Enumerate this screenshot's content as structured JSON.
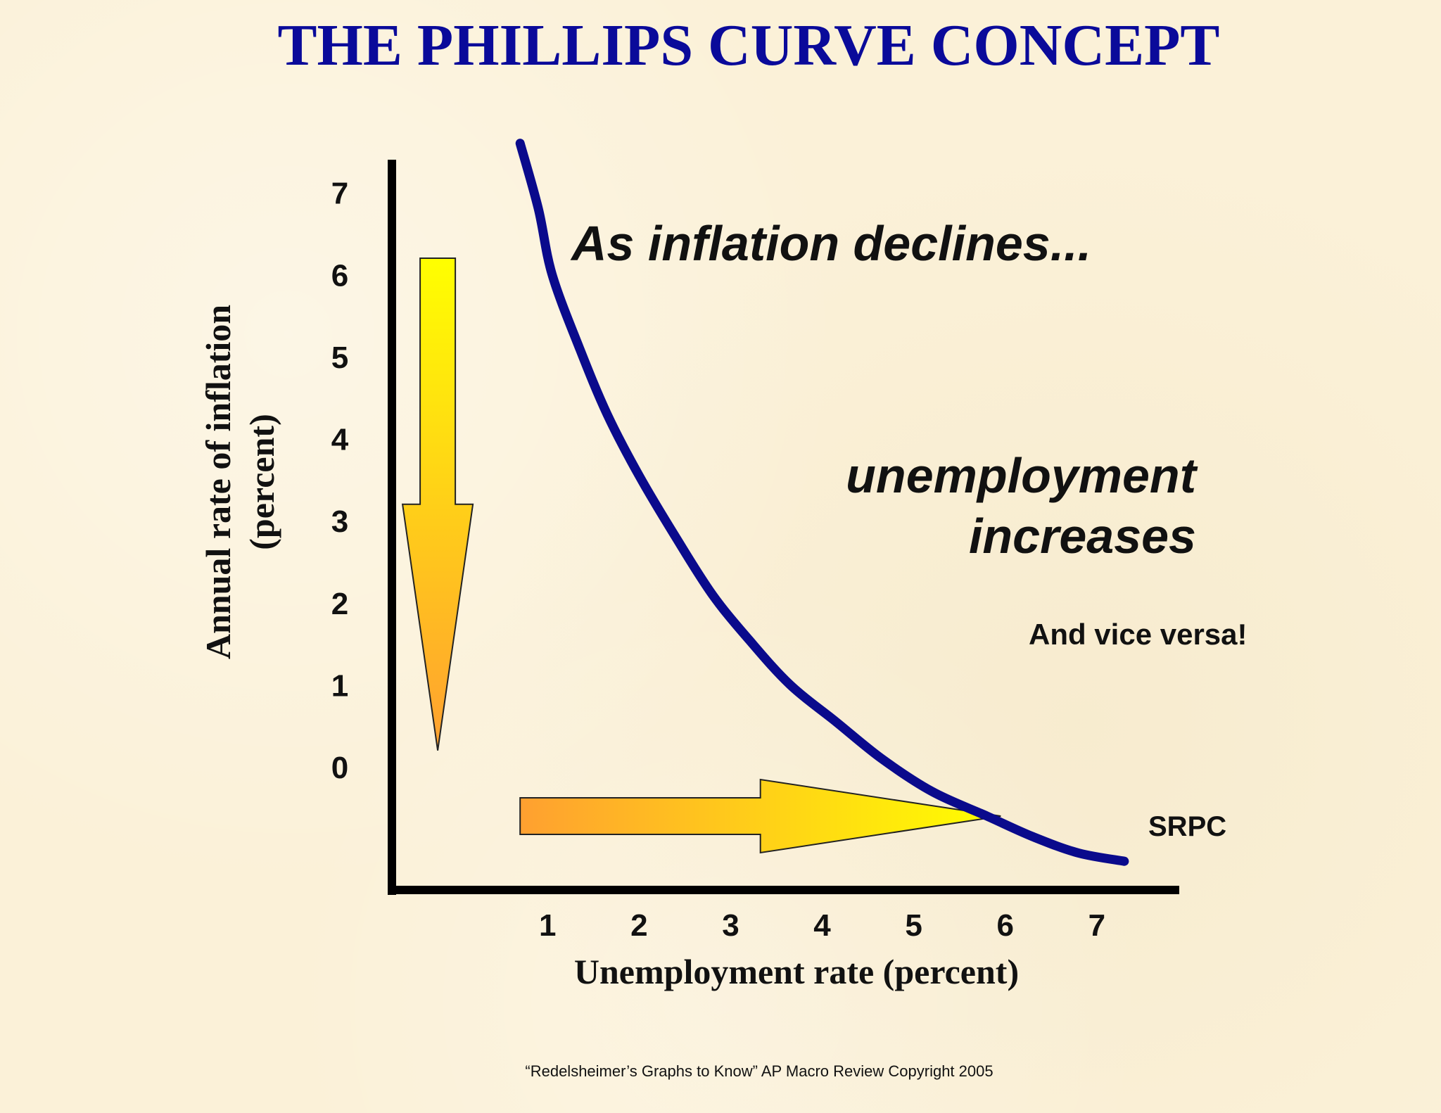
{
  "chart_data": {
    "type": "line",
    "title": "THE PHILLIPS CURVE CONCEPT",
    "xlabel": "Unemployment rate (percent)",
    "ylabel_lines": [
      "Annual rate of inflation",
      "(percent)"
    ],
    "x_ticks": [
      1,
      2,
      3,
      4,
      5,
      6,
      7
    ],
    "y_ticks": [
      0,
      1,
      2,
      3,
      4,
      5,
      6,
      7
    ],
    "xlim": [
      -0.7,
      7.9
    ],
    "ylim": [
      -1.5,
      7.4
    ],
    "series": [
      {
        "name": "SRPC",
        "color": "#0a0a8c",
        "x": [
          0.7,
          0.9,
          1.05,
          1.35,
          1.65,
          2.0,
          2.4,
          2.8,
          3.2,
          3.65,
          4.15,
          4.65,
          5.2,
          5.8,
          6.3,
          6.8,
          7.3
        ],
        "y": [
          7.6,
          6.8,
          6.0,
          5.1,
          4.3,
          3.55,
          2.8,
          2.1,
          1.55,
          1.0,
          0.55,
          0.1,
          -0.3,
          -0.6,
          -0.85,
          -1.05,
          -1.15
        ]
      }
    ],
    "arrows": [
      {
        "direction": "down",
        "from": [
          -0.2,
          6.2
        ],
        "to": [
          -0.2,
          0.2
        ],
        "colors": [
          "#ffff00",
          "#ffa030"
        ]
      },
      {
        "direction": "right",
        "from": [
          0.7,
          -0.6
        ],
        "to": [
          5.95,
          -0.6
        ],
        "colors": [
          "#ffa030",
          "#ffff00"
        ]
      }
    ],
    "annotations": {
      "decline": "As inflation declines...",
      "increase_lines": [
        "unemployment",
        "increases"
      ],
      "vice_versa": "And vice versa!",
      "curve_label": "SRPC"
    },
    "footer": "“Redelsheimer’s Graphs to Know”  AP Macro Review Copyright 2005"
  }
}
